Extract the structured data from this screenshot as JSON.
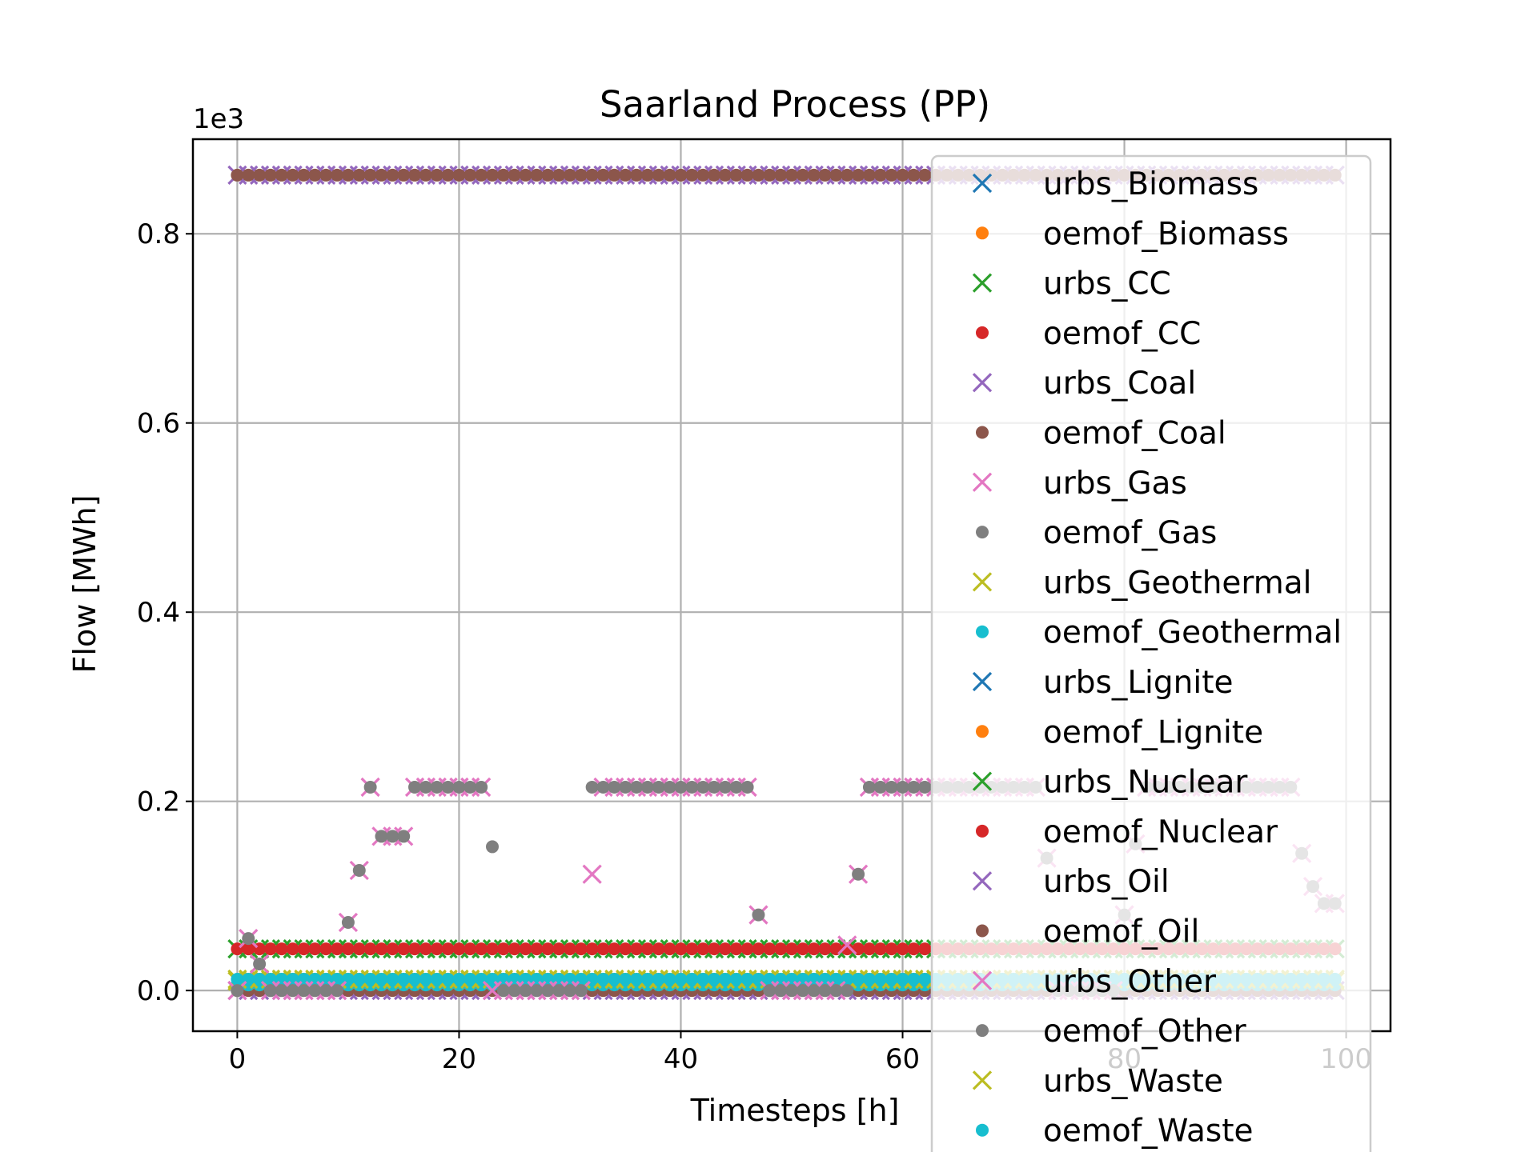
{
  "chart_data": {
    "type": "scatter",
    "title": "Saarland Process (PP)",
    "xlabel": "Timesteps [h]",
    "ylabel": "Flow [MWh]",
    "y_offset_text": "1e3",
    "xlim": [
      -4,
      104
    ],
    "ylim": [
      -0.043,
      0.9
    ],
    "xticks": [
      0,
      20,
      40,
      60,
      80,
      100
    ],
    "xtick_labels": [
      "0",
      "20",
      "40",
      "60",
      "80",
      "100"
    ],
    "yticks": [
      0.0,
      0.2,
      0.4,
      0.6,
      0.8
    ],
    "ytick_labels": [
      "0.0",
      "0.2",
      "0.4",
      "0.6",
      "0.8"
    ],
    "grid": true,
    "legend_position": "right, overlapping the plot",
    "markers": {
      "urbs": "x",
      "oemof": "dot"
    },
    "legend": [
      {
        "name": "urbs_Biomass",
        "marker": "x",
        "color": "#1f77b4"
      },
      {
        "name": "oemof_Biomass",
        "marker": "dot",
        "color": "#ff7f0e"
      },
      {
        "name": "urbs_CC",
        "marker": "x",
        "color": "#2ca02c"
      },
      {
        "name": "oemof_CC",
        "marker": "dot",
        "color": "#d62728"
      },
      {
        "name": "urbs_Coal",
        "marker": "x",
        "color": "#9467bd"
      },
      {
        "name": "oemof_Coal",
        "marker": "dot",
        "color": "#8c564b"
      },
      {
        "name": "urbs_Gas",
        "marker": "x",
        "color": "#e377c2"
      },
      {
        "name": "oemof_Gas",
        "marker": "dot",
        "color": "#7f7f7f"
      },
      {
        "name": "urbs_Geothermal",
        "marker": "x",
        "color": "#bcbd22"
      },
      {
        "name": "oemof_Geothermal",
        "marker": "dot",
        "color": "#17becf"
      },
      {
        "name": "urbs_Lignite",
        "marker": "x",
        "color": "#1f77b4"
      },
      {
        "name": "oemof_Lignite",
        "marker": "dot",
        "color": "#ff7f0e"
      },
      {
        "name": "urbs_Nuclear",
        "marker": "x",
        "color": "#2ca02c"
      },
      {
        "name": "oemof_Nuclear",
        "marker": "dot",
        "color": "#d62728"
      },
      {
        "name": "urbs_Oil",
        "marker": "x",
        "color": "#9467bd"
      },
      {
        "name": "oemof_Oil",
        "marker": "dot",
        "color": "#8c564b"
      },
      {
        "name": "urbs_Other",
        "marker": "x",
        "color": "#e377c2"
      },
      {
        "name": "oemof_Other",
        "marker": "dot",
        "color": "#7f7f7f"
      },
      {
        "name": "urbs_Waste",
        "marker": "x",
        "color": "#bcbd22"
      },
      {
        "name": "oemof_Waste",
        "marker": "dot",
        "color": "#17becf"
      }
    ],
    "series": [
      {
        "name": "urbs_Coal",
        "constant": 0.862
      },
      {
        "name": "oemof_Coal",
        "constant": 0.862
      },
      {
        "name": "urbs_CC",
        "constant": 0.044
      },
      {
        "name": "oemof_CC",
        "constant": 0.044
      },
      {
        "name": "urbs_Geothermal",
        "constant": 0.012
      },
      {
        "name": "oemof_Geothermal",
        "constant": 0.012
      },
      {
        "name": "urbs_Waste",
        "constant": 0.01
      },
      {
        "name": "oemof_Waste",
        "constant": 0.006
      },
      {
        "name": "urbs_Oil",
        "constant": 0.0
      },
      {
        "name": "oemof_Oil",
        "constant": 0.0
      },
      {
        "name": "urbs_Gas",
        "values": [
          0.0,
          0.055,
          0.028,
          0.0,
          0.0,
          0.0,
          0.0,
          0.0,
          0.0,
          0.0,
          0.072,
          0.127,
          0.215,
          0.163,
          0.163,
          0.163,
          0.215,
          0.215,
          0.215,
          0.215,
          0.215,
          0.215,
          0.215,
          0.0,
          0.0,
          0.0,
          0.0,
          0.0,
          0.0,
          0.0,
          0.0,
          0.0,
          0.123,
          0.215,
          0.215,
          0.215,
          0.215,
          0.215,
          0.215,
          0.215,
          0.215,
          0.215,
          0.215,
          0.215,
          0.215,
          0.215,
          0.215,
          0.08,
          0.0,
          0.0,
          0.0,
          0.0,
          0.0,
          0.0,
          0.0,
          0.048,
          0.123,
          0.215,
          0.215,
          0.215,
          0.215,
          0.215,
          0.215,
          0.215,
          0.215,
          0.215,
          0.215,
          0.215,
          0.215,
          0.215,
          0.215,
          0.215,
          0.215,
          0.14,
          0.0,
          0.0,
          0.0,
          0.0,
          0.0,
          0.0,
          0.08,
          0.155,
          0.215,
          0.215,
          0.215,
          0.215,
          0.215,
          0.215,
          0.215,
          0.215,
          0.215,
          0.215,
          0.215,
          0.215,
          0.215,
          0.215,
          0.145,
          0.11,
          0.092,
          0.092
        ]
      },
      {
        "name": "oemof_Gas",
        "values": [
          0.0,
          0.055,
          0.028,
          0.0,
          0.0,
          0.0,
          0.0,
          0.0,
          0.0,
          0.0,
          0.072,
          0.127,
          0.215,
          0.163,
          0.163,
          0.163,
          0.215,
          0.215,
          0.215,
          0.215,
          0.215,
          0.215,
          0.215,
          0.152,
          0.0,
          0.0,
          0.0,
          0.0,
          0.0,
          0.0,
          0.0,
          0.0,
          0.215,
          0.215,
          0.215,
          0.215,
          0.215,
          0.215,
          0.215,
          0.215,
          0.215,
          0.215,
          0.215,
          0.215,
          0.215,
          0.215,
          0.215,
          0.08,
          0.0,
          0.0,
          0.0,
          0.0,
          0.0,
          0.0,
          0.0,
          0.0,
          0.123,
          0.215,
          0.215,
          0.215,
          0.215,
          0.215,
          0.215,
          0.215,
          0.215,
          0.215,
          0.215,
          0.215,
          0.215,
          0.215,
          0.215,
          0.215,
          0.215,
          0.14,
          0.0,
          0.0,
          0.0,
          0.0,
          0.0,
          0.0,
          0.08,
          0.155,
          0.215,
          0.215,
          0.215,
          0.215,
          0.215,
          0.215,
          0.215,
          0.215,
          0.215,
          0.215,
          0.215,
          0.215,
          0.215,
          0.215,
          0.145,
          0.11,
          0.092,
          0.092
        ]
      }
    ]
  }
}
